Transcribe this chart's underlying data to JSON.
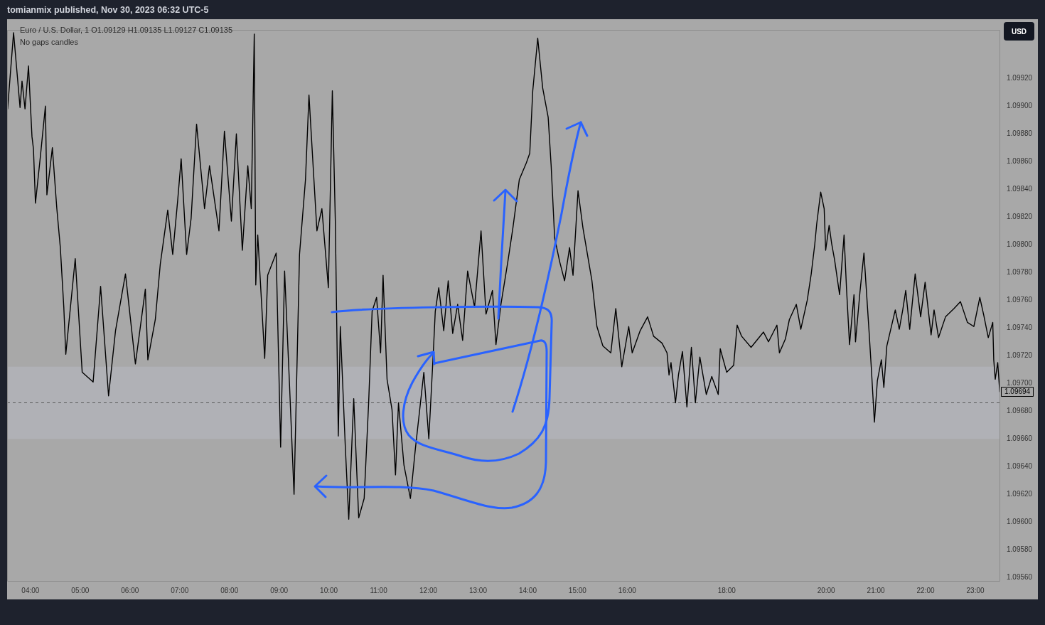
{
  "chart_data": {
    "type": "line",
    "title": "Euro / U.S. Dollar, 1 O1.09129 H1.09135 L1.09127 C1.09135",
    "subtitle": "No gaps candles",
    "annotations": [
      "tomianmix published, Nov 30, 2023 06:32 UTC-5",
      "USD",
      "1.09694"
    ],
    "x": [
      3.54,
      3.66,
      3.79,
      3.83,
      3.89,
      3.96,
      4.03,
      4.06,
      4.1,
      4.2,
      4.3,
      4.33,
      4.44,
      4.53,
      4.6,
      4.67,
      4.71,
      4.9,
      5.04,
      5.26,
      5.41,
      5.57,
      5.71,
      5.91,
      6.11,
      6.31,
      6.36,
      6.51,
      6.61,
      6.71,
      6.76,
      6.86,
      6.96,
      7.03,
      7.14,
      7.23,
      7.34,
      7.5,
      7.6,
      7.79,
      7.9,
      8.04,
      8.14,
      8.26,
      8.37,
      8.44,
      8.5,
      8.53,
      8.57,
      8.71,
      8.77,
      8.94,
      9.03,
      9.11,
      9.21,
      9.3,
      9.41,
      9.53,
      9.6,
      9.76,
      9.86,
      9.99,
      10.07,
      10.13,
      10.19,
      10.23,
      10.33,
      10.4,
      10.5,
      10.6,
      10.71,
      10.8,
      10.87,
      10.96,
      11.04,
      11.09,
      11.17,
      11.27,
      11.34,
      11.4,
      11.51,
      11.64,
      11.74,
      11.91,
      12.01,
      12.1,
      12.14,
      12.21,
      12.31,
      12.4,
      12.49,
      12.59,
      12.69,
      12.79,
      12.93,
      13.06,
      13.16,
      13.29,
      13.36,
      13.46,
      13.6,
      13.7,
      13.83,
      13.97,
      14.04,
      14.1,
      14.2,
      14.3,
      14.41,
      14.47,
      14.54,
      14.64,
      14.74,
      14.84,
      14.91,
      15.01,
      15.11,
      15.29,
      15.39,
      15.51,
      15.67,
      15.77,
      15.89,
      16.03,
      16.1,
      16.26,
      16.41,
      16.53,
      16.7,
      16.8,
      16.84,
      16.88,
      16.97,
      17.03,
      17.11,
      17.2,
      17.29,
      17.37,
      17.46,
      17.59,
      17.7,
      17.83,
      17.87,
      18.0,
      18.14,
      18.21,
      18.3,
      18.49,
      18.74,
      18.84,
      19.01,
      19.06,
      19.18,
      19.26,
      19.4,
      19.49,
      19.62,
      19.7,
      19.77,
      19.81,
      19.89,
      19.96,
      19.99,
      20.06,
      20.11,
      20.17,
      20.27,
      20.36,
      20.41,
      20.47,
      20.56,
      20.59,
      20.68,
      20.76,
      20.86,
      20.91,
      20.97,
      21.03,
      21.11,
      21.16,
      21.22,
      21.39,
      21.47,
      21.54,
      21.6,
      21.68,
      21.79,
      21.9,
      21.99,
      22.11,
      22.17,
      22.26,
      22.4,
      22.57,
      22.7,
      22.84,
      22.97,
      23.09,
      23.17,
      23.26,
      23.35,
      23.37,
      23.4,
      23.45,
      23.49
    ],
    "series": [
      {
        "color": "#000000",
        "values": [
          1.09898,
          1.09953,
          1.09899,
          1.09918,
          1.09898,
          1.09929,
          1.09878,
          1.09869,
          1.0983,
          1.09864,
          1.099,
          1.09836,
          1.0987,
          1.09826,
          1.09798,
          1.09755,
          1.09721,
          1.0979,
          1.09708,
          1.09701,
          1.0977,
          1.09691,
          1.09738,
          1.09779,
          1.09714,
          1.09768,
          1.09717,
          1.09746,
          1.09786,
          1.09812,
          1.09825,
          1.09793,
          1.09832,
          1.09862,
          1.09793,
          1.09819,
          1.09887,
          1.09826,
          1.09857,
          1.0981,
          1.09882,
          1.09817,
          1.0988,
          1.09796,
          1.09857,
          1.09826,
          1.09952,
          1.09771,
          1.09807,
          1.09718,
          1.09778,
          1.09794,
          1.09654,
          1.09781,
          1.09698,
          1.0962,
          1.09793,
          1.09847,
          1.09908,
          1.0981,
          1.09826,
          1.09769,
          1.09911,
          1.09817,
          1.09662,
          1.09741,
          1.09655,
          1.09602,
          1.09689,
          1.09603,
          1.09617,
          1.09686,
          1.09752,
          1.09762,
          1.09722,
          1.09778,
          1.09703,
          1.09681,
          1.09634,
          1.09686,
          1.09641,
          1.09617,
          1.09653,
          1.09708,
          1.0966,
          1.09722,
          1.09752,
          1.09769,
          1.09738,
          1.09774,
          1.09736,
          1.09757,
          1.09731,
          1.09781,
          1.09755,
          1.0981,
          1.0975,
          1.09767,
          1.09728,
          1.09757,
          1.09788,
          1.09812,
          1.09847,
          1.09859,
          1.09866,
          1.09911,
          1.09949,
          1.09913,
          1.09892,
          1.09857,
          1.09805,
          1.09788,
          1.09774,
          1.09798,
          1.09778,
          1.09839,
          1.09812,
          1.09774,
          1.09741,
          1.09727,
          1.09722,
          1.09754,
          1.09712,
          1.09741,
          1.09722,
          1.09738,
          1.09748,
          1.09734,
          1.09729,
          1.09722,
          1.09706,
          1.09715,
          1.09686,
          1.09706,
          1.09723,
          1.09683,
          1.09726,
          1.09686,
          1.09719,
          1.09692,
          1.09705,
          1.09692,
          1.09725,
          1.09708,
          1.09713,
          1.09742,
          1.09734,
          1.09726,
          1.09737,
          1.0973,
          1.09742,
          1.09722,
          1.09732,
          1.09746,
          1.09757,
          1.09739,
          1.0976,
          1.09779,
          1.098,
          1.09815,
          1.09838,
          1.09826,
          1.09796,
          1.09814,
          1.09801,
          1.09789,
          1.09764,
          1.09807,
          1.09768,
          1.09728,
          1.09764,
          1.0973,
          1.09766,
          1.09794,
          1.09739,
          1.0971,
          1.09672,
          1.09702,
          1.09717,
          1.09697,
          1.09727,
          1.09753,
          1.09739,
          1.09753,
          1.09767,
          1.09739,
          1.09779,
          1.09748,
          1.09773,
          1.09735,
          1.09753,
          1.09733,
          1.09748,
          1.09754,
          1.09759,
          1.09744,
          1.09741,
          1.09762,
          1.09749,
          1.09733,
          1.09744,
          1.09717,
          1.09703,
          1.09715,
          1.09694
        ]
      }
    ],
    "bands": [
      {
        "axis": "y",
        "from": 1.0966,
        "to": 1.09712,
        "color": "#b0b1b6"
      }
    ],
    "ref_lines": [
      {
        "axis": "y",
        "value": 1.09686,
        "color": "#5a5a5a",
        "line_style": "dashed"
      }
    ],
    "xlim": [
      3.53,
      23.5
    ],
    "xticks": [
      {
        "value": 4,
        "label": "04:00"
      },
      {
        "value": 5,
        "label": "05:00"
      },
      {
        "value": 6,
        "label": "06:00"
      },
      {
        "value": 7,
        "label": "07:00"
      },
      {
        "value": 8,
        "label": "08:00"
      },
      {
        "value": 9,
        "label": "09:00"
      },
      {
        "value": 10,
        "label": "10:00"
      },
      {
        "value": 11,
        "label": "11:00"
      },
      {
        "value": 12,
        "label": "12:00"
      },
      {
        "value": 13,
        "label": "13:00"
      },
      {
        "value": 14,
        "label": "14:00"
      },
      {
        "value": 15,
        "label": "15:00"
      },
      {
        "value": 16,
        "label": "16:00"
      },
      {
        "value": 18,
        "label": "18:00"
      },
      {
        "value": 20,
        "label": "20:00"
      },
      {
        "value": 21,
        "label": "21:00"
      },
      {
        "value": 22,
        "label": "22:00"
      },
      {
        "value": 23,
        "label": "23:00"
      }
    ],
    "ylim": [
      1.09557,
      1.09955
    ],
    "yticks": [
      {
        "value": 1.0956,
        "label": "1.09560"
      },
      {
        "value": 1.0958,
        "label": "1.09580"
      },
      {
        "value": 1.096,
        "label": "1.09600"
      },
      {
        "value": 1.0962,
        "label": "1.09620"
      },
      {
        "value": 1.0964,
        "label": "1.09640"
      },
      {
        "value": 1.0966,
        "label": "1.09660"
      },
      {
        "value": 1.0968,
        "label": "1.09680"
      },
      {
        "value": 1.097,
        "label": "1.09700"
      },
      {
        "value": 1.0972,
        "label": "1.09720"
      },
      {
        "value": 1.0974,
        "label": "1.09740"
      },
      {
        "value": 1.0976,
        "label": "1.09760"
      },
      {
        "value": 1.0978,
        "label": "1.09780"
      },
      {
        "value": 1.098,
        "label": "1.09800"
      },
      {
        "value": 1.0982,
        "label": "1.09820"
      },
      {
        "value": 1.0984,
        "label": "1.09840"
      },
      {
        "value": 1.0986,
        "label": "1.09860"
      },
      {
        "value": 1.0988,
        "label": "1.09880"
      },
      {
        "value": 1.099,
        "label": "1.09900"
      },
      {
        "value": 1.0992,
        "label": "1.09920"
      }
    ],
    "grid": false,
    "legend": false,
    "marker": "none"
  }
}
